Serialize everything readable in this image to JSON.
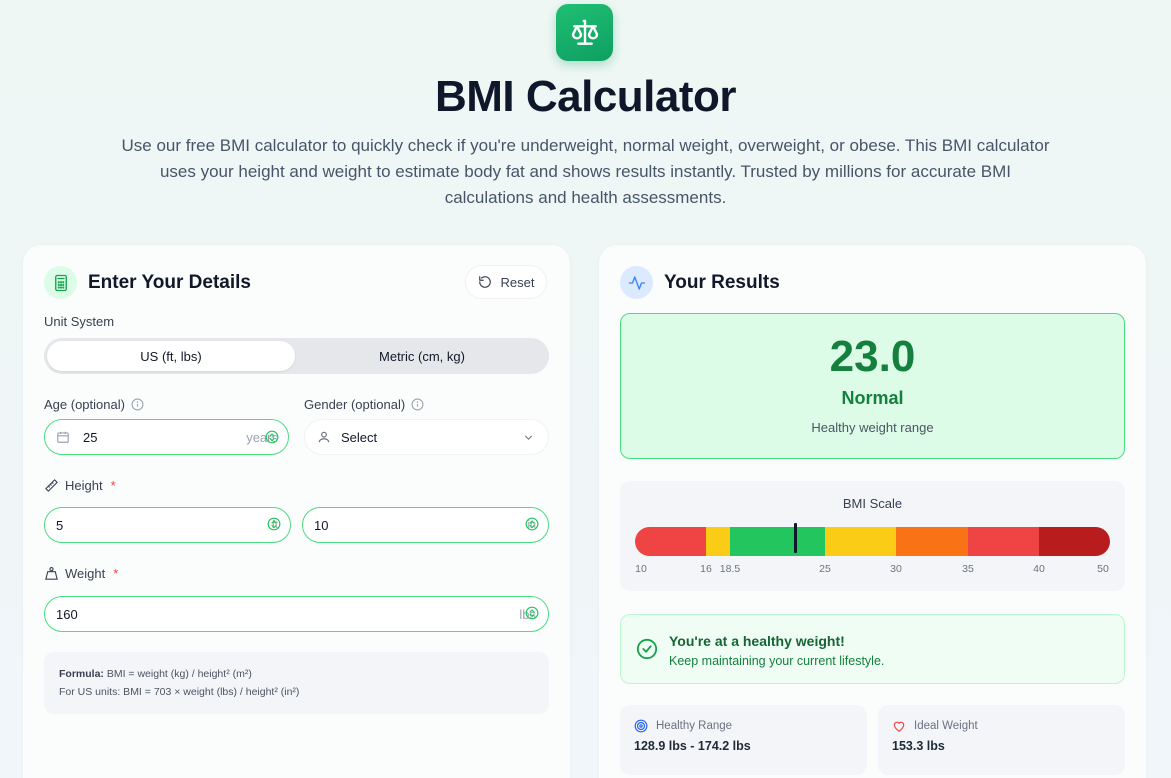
{
  "header": {
    "logo_icon": "scale-balance-icon",
    "title": "BMI Calculator",
    "subtitle": "Use our free BMI calculator to quickly check if you're underweight, normal weight, overweight, or obese. This BMI calculator uses your height and weight to estimate body fat and shows results instantly. Trusted by millions for accurate BMI calculations and health assessments."
  },
  "details": {
    "title": "Enter Your Details",
    "reset_label": "Reset",
    "unit_system_label": "Unit System",
    "unit_options": [
      "US (ft, lbs)",
      "Metric (cm, kg)"
    ],
    "selected_unit": "US (ft, lbs)",
    "age_label": "Age (optional)",
    "age_value": "25",
    "age_unit": "years",
    "gender_label": "Gender (optional)",
    "gender_value": "Select",
    "height_label": "Height",
    "height_required": "*",
    "height_ft": "5",
    "height_ft_unit": "ft",
    "height_in": "10",
    "height_in_unit": "in",
    "weight_label": "Weight",
    "weight_required": "*",
    "weight_value": "160",
    "weight_unit": "lbs",
    "formula_label": "Formula:",
    "formula_text": "BMI = weight (kg) / height² (m²)",
    "formula_us": "For US units: BMI = 703 × weight (lbs) / height² (in²)"
  },
  "results": {
    "title": "Your Results",
    "bmi_value": "23.0",
    "category": "Normal",
    "category_desc": "Healthy weight range",
    "scale_title": "BMI Scale",
    "scale_ticks": [
      "10",
      "16",
      "18.5",
      "25",
      "30",
      "35",
      "40",
      "50"
    ],
    "scale_min": 10,
    "scale_max": 50,
    "marker_value": 23.0,
    "scale_segments": [
      {
        "from": 10,
        "to": 16,
        "color": "#ef4444"
      },
      {
        "from": 16,
        "to": 18.5,
        "color": "#facc15"
      },
      {
        "from": 18.5,
        "to": 25,
        "color": "#22c55e"
      },
      {
        "from": 25,
        "to": 30,
        "color": "#facc15"
      },
      {
        "from": 30,
        "to": 35,
        "color": "#f97316"
      },
      {
        "from": 35,
        "to": 40,
        "color": "#ef4444"
      },
      {
        "from": 40,
        "to": 50,
        "color": "#b91c1c"
      }
    ],
    "message_title": "You're at a healthy weight!",
    "message_sub": "Keep maintaining your current lifestyle.",
    "healthy_range_label": "Healthy Range",
    "healthy_range_value": "128.9 lbs - 174.2 lbs",
    "ideal_weight_label": "Ideal Weight",
    "ideal_weight_value": "153.3 lbs"
  },
  "colors": {
    "accent": "#16a34a",
    "field_border": "#4ade80",
    "result_bg": "#dcfce7"
  }
}
